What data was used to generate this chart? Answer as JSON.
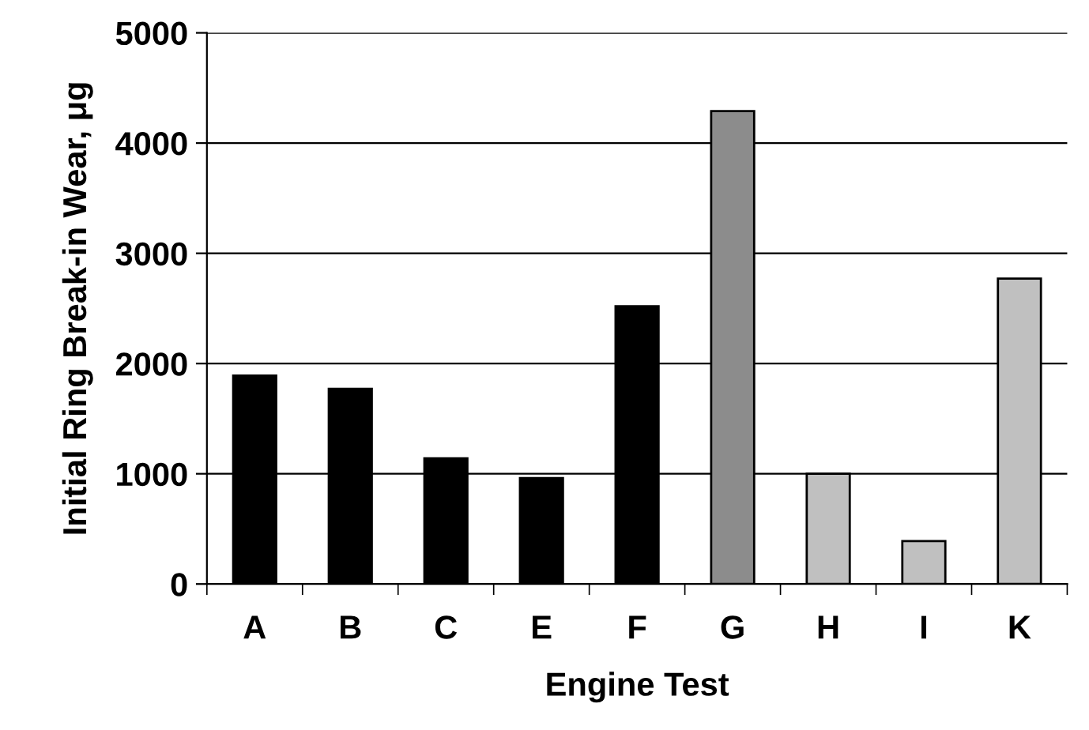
{
  "chart_data": {
    "type": "bar",
    "xlabel": "Engine Test",
    "ylabel": "Initial Ring Break-in Wear, μg",
    "categories": [
      "A",
      "B",
      "C",
      "E",
      "F",
      "G",
      "H",
      "I",
      "K"
    ],
    "values": [
      1890,
      1770,
      1140,
      960,
      2520,
      4290,
      1000,
      390,
      2770
    ],
    "colors": [
      "#000000",
      "#000000",
      "#000000",
      "#000000",
      "#000000",
      "#8c8c8c",
      "#c0c0c0",
      "#c0c0c0",
      "#c0c0c0"
    ],
    "ylim": [
      0,
      5000
    ],
    "yticks": [
      0,
      1000,
      2000,
      3000,
      4000,
      5000
    ],
    "grid": "y"
  }
}
